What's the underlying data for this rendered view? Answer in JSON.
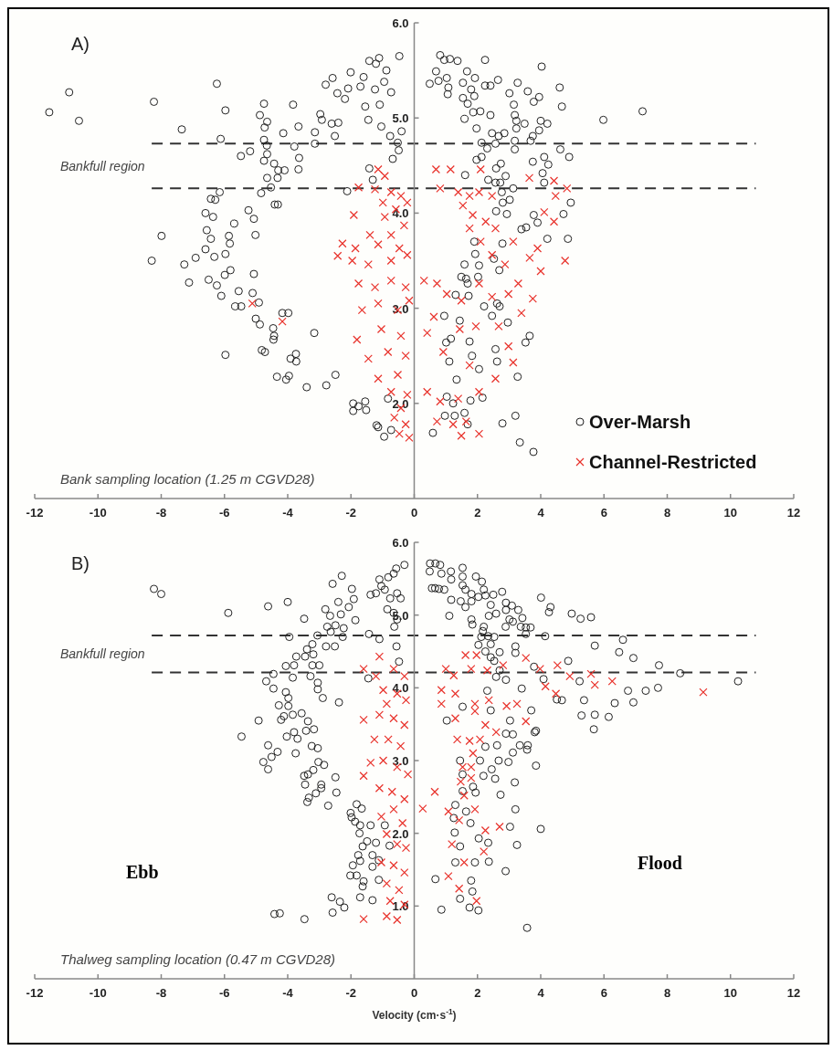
{
  "chart_data": [
    {
      "type": "scatter",
      "title": "A)",
      "xlim": [
        -12,
        12
      ],
      "ylim": [
        1,
        6
      ],
      "xticks": [
        -12,
        -10,
        -8,
        -6,
        -4,
        -2,
        0,
        2,
        4,
        6,
        8,
        10,
        12
      ],
      "yticks": [
        {
          "value": 2,
          "label": "2.0"
        },
        {
          "value": 3,
          "label": "3.0"
        },
        {
          "value": 4,
          "label": "4.0"
        },
        {
          "value": 5,
          "label": "5.0"
        },
        {
          "value": 6,
          "label": "6.0"
        }
      ],
      "grid": false,
      "legend": "bottom right",
      "ref_lines": [
        {
          "axis": "y",
          "value": 4.73,
          "line_style": "dashed",
          "color": "#333333"
        },
        {
          "axis": "y",
          "value": 4.26,
          "line_style": "dashed",
          "color": "#333333"
        }
      ],
      "annotations": [
        "Bankfull region",
        "Bank sampling location (1.25 m CGVD28)"
      ],
      "series": [
        {
          "name": "Over-Marsh",
          "color": "#222222",
          "marker": "circle",
          "x": [
            -11.54,
            -10.91,
            -10.6,
            -8.23,
            -8.3,
            -7.99,
            -7.35,
            -6.24,
            -5.97,
            -6.12,
            -7.27,
            -6.91,
            -7.12,
            -6.6,
            -6.43,
            -6.29,
            -6.15,
            -6.36,
            -6.56,
            -6.43,
            -6.6,
            -6.32,
            -6.5,
            -6.24,
            -6.1,
            -5.97,
            -5.69,
            -5.86,
            -5.83,
            -5.97,
            -5.99,
            -5.81,
            -5.55,
            -5.66,
            -5.47,
            -5.48,
            -5.19,
            -5.24,
            -5.07,
            -5.02,
            -5.07,
            -5.11,
            -4.91,
            -5.01,
            -4.88,
            -4.75,
            -4.88,
            -4.65,
            -4.73,
            -4.75,
            -4.66,
            -4.65,
            -4.75,
            -4.43,
            -4.65,
            -4.3,
            -4.1,
            -4.32,
            -4.53,
            -4.84,
            -4.41,
            -4.31,
            -3.83,
            -3.66,
            -4.14,
            -3.79,
            -3.64,
            -3.66,
            -4.46,
            -4.43,
            -4.45,
            -4.17,
            -3.98,
            -4.82,
            -4.72,
            -3.91,
            -3.74,
            -3.73,
            -4.34,
            -4.05,
            -3.96,
            -3.4,
            -3.16,
            -2.78,
            -2.49,
            -3.14,
            -3.14,
            -2.97,
            -2.92,
            -2.61,
            -2.4,
            -2.51,
            -2.8,
            -2.58,
            -2.43,
            -2.19,
            -2.09,
            -2.01,
            -2.12,
            -1.7,
            -1.6,
            -1.55,
            -1.45,
            -1.42,
            -1.21,
            -1.11,
            -1.24,
            -0.95,
            -0.73,
            -0.88,
            -0.47,
            -1.09,
            -1.04,
            -0.76,
            -0.52,
            -0.4,
            -0.49,
            -0.68,
            -1.42,
            -1.31,
            -1.93,
            -1.76,
            -1.55,
            -1.93,
            -1.52,
            -1.19,
            -1.14,
            -0.95,
            -0.83,
            -0.73,
            0.82,
            0.95,
            1.13,
            1.37,
            2.24,
            4.03,
            0.69,
            1.03,
            0.49,
            0.77,
            1.08,
            1.06,
            1.67,
            1.92,
            1.54,
            1.8,
            1.9,
            1.54,
            1.69,
            2.24,
            2.41,
            2.65,
            3.01,
            3.27,
            3.59,
            3.78,
            3.95,
            4.6,
            4.67,
            5.98,
            7.22,
            1.59,
            1.87,
            2.09,
            2.41,
            1.97,
            3.15,
            3.18,
            3.23,
            3.49,
            4.0,
            4.21,
            3.95,
            3.75,
            2.46,
            2.67,
            2.85,
            3.23,
            2.13,
            2.31,
            2.57,
            3.18,
            3.18,
            3.68,
            4.62,
            4.9,
            1.97,
            2.13,
            3.75,
            4.11,
            4.24,
            1.61,
            2.59,
            2.74,
            2.34,
            2.57,
            2.72,
            2.89,
            4.06,
            4.11,
            3.13,
            2.77,
            3.02,
            2.8,
            2.59,
            2.93,
            4.95,
            3.78,
            3.9,
            4.72,
            3.39,
            3.54,
            4.21,
            4.86,
            2.79,
            1.9,
            1.93,
            2.52,
            1.59,
            2.05,
            2.69,
            1.49,
            1.64,
            1.69,
            1.72,
            1.31,
            2.02,
            2.21,
            2.62,
            2.7,
            0.95,
            2.46,
            1.44,
            2.96,
            3.52,
            3.65,
            1.01,
            1.16,
            1.75,
            1.11,
            1.83,
            2.05,
            2.57,
            2.62,
            3.27,
            1.34,
            1.03,
            1.23,
            2.16,
            1.78,
            0.97,
            1.28,
            1.59,
            0.59,
            1.69,
            2.79,
            3.2,
            3.34,
            3.77
          ],
          "values": [
            5.06,
            5.27,
            4.97,
            5.17,
            3.5,
            3.76,
            4.88,
            5.36,
            5.08,
            4.78,
            3.46,
            3.53,
            3.27,
            4.0,
            4.15,
            4.14,
            4.22,
            3.96,
            3.82,
            3.73,
            3.62,
            3.54,
            3.3,
            3.24,
            3.13,
            2.51,
            3.89,
            3.76,
            3.68,
            3.57,
            3.35,
            3.4,
            3.18,
            3.02,
            3.02,
            4.6,
            4.65,
            4.03,
            3.94,
            3.77,
            3.36,
            3.16,
            3.06,
            2.89,
            2.83,
            5.15,
            5.03,
            4.96,
            4.9,
            4.77,
            4.71,
            4.62,
            4.55,
            4.52,
            4.37,
            4.45,
            4.45,
            4.37,
            4.27,
            4.21,
            4.09,
            4.09,
            5.14,
            4.91,
            4.84,
            4.7,
            4.58,
            4.46,
            2.79,
            2.71,
            2.67,
            2.95,
            2.95,
            2.56,
            2.54,
            2.47,
            2.52,
            2.44,
            2.28,
            2.25,
            2.29,
            2.17,
            2.74,
            2.19,
            2.3,
            4.85,
            4.73,
            5.04,
            4.98,
            4.94,
            4.95,
            4.81,
            5.35,
            5.42,
            5.26,
            5.2,
            5.31,
            5.48,
            4.23,
            5.33,
            5.43,
            5.12,
            4.98,
            5.6,
            5.57,
            5.63,
            5.3,
            5.38,
            5.27,
            5.5,
            5.65,
            5.14,
            4.91,
            4.81,
            4.74,
            4.86,
            4.66,
            4.57,
            4.47,
            4.35,
            2.0,
            1.97,
            2.02,
            1.92,
            1.93,
            1.77,
            1.75,
            1.65,
            2.05,
            1.72,
            5.66,
            5.61,
            5.62,
            5.6,
            5.61,
            5.54,
            5.49,
            5.42,
            5.36,
            5.39,
            5.32,
            5.25,
            5.49,
            5.42,
            5.37,
            5.3,
            5.23,
            5.21,
            5.15,
            5.34,
            5.34,
            5.4,
            5.26,
            5.37,
            5.28,
            5.17,
            5.22,
            5.32,
            5.12,
            4.98,
            5.07,
            4.99,
            5.06,
            5.07,
            5.03,
            4.89,
            5.14,
            5.03,
            4.97,
            4.94,
            4.97,
            4.94,
            4.87,
            4.81,
            4.84,
            4.81,
            4.84,
            4.89,
            4.74,
            4.68,
            4.73,
            4.76,
            4.67,
            4.76,
            4.67,
            4.59,
            4.56,
            4.59,
            4.54,
            4.59,
            4.51,
            4.4,
            4.47,
            4.52,
            4.35,
            4.32,
            4.32,
            4.39,
            4.42,
            4.32,
            4.26,
            4.22,
            4.14,
            4.11,
            4.02,
            3.99,
            4.11,
            3.98,
            3.9,
            3.99,
            3.83,
            3.85,
            3.73,
            3.73,
            3.68,
            3.7,
            3.57,
            3.52,
            3.46,
            3.45,
            3.4,
            3.33,
            3.31,
            3.26,
            3.13,
            3.14,
            3.33,
            3.02,
            3.05,
            3.02,
            2.92,
            2.92,
            2.87,
            2.85,
            2.64,
            2.71,
            2.64,
            2.68,
            2.65,
            2.44,
            2.5,
            2.36,
            2.57,
            2.44,
            2.28,
            2.25,
            2.07,
            2.0,
            2.06,
            2.03,
            1.87,
            1.87,
            1.9,
            1.69,
            1.78,
            1.79,
            1.87,
            1.59,
            1.49
          ]
        },
        {
          "name": "Channel-Restricted",
          "color": "#e8312a",
          "marker": "cross",
          "x": [
            -1.14,
            -0.93,
            -1.76,
            -1.24,
            -0.73,
            -0.42,
            -0.99,
            -0.58,
            -0.22,
            -1.91,
            -0.93,
            -0.32,
            -1.4,
            -0.73,
            -2.27,
            -1.86,
            -1.14,
            -0.47,
            -2.42,
            -1.96,
            -1.45,
            -0.73,
            -0.22,
            -1.76,
            -1.24,
            -0.73,
            -0.27,
            -1.65,
            -1.14,
            -0.52,
            -0.16,
            -1.81,
            -1.04,
            -0.42,
            -1.45,
            -0.83,
            -0.27,
            -1.14,
            -0.52,
            -0.73,
            -0.22,
            -0.42,
            -0.63,
            -0.27,
            -0.47,
            -0.16,
            -5.12,
            -4.17,
            0.69,
            1.15,
            2.1,
            0.82,
            1.39,
            1.75,
            2.05,
            2.46,
            1.54,
            1.85,
            2.26,
            1.75,
            2.57,
            2.1,
            2.46,
            3.64,
            4.42,
            4.83,
            4.47,
            4.11,
            4.42,
            3.13,
            3.9,
            3.65,
            4.0,
            4.77,
            2.87,
            3.29,
            2.98,
            3.75,
            3.39,
            0.31,
            0.72,
            0.62,
            1.03,
            1.49,
            2.05,
            2.46,
            0.41,
            1.44,
            1.95,
            2.67,
            2.98,
            0.92,
            1.75,
            2.57,
            3.13,
            0.41,
            0.82,
            1.39,
            2.05,
            0.72,
            1.23,
            1.64,
            2.05,
            1.49
          ],
          "values": [
            4.46,
            4.39,
            4.27,
            4.25,
            4.22,
            4.18,
            4.11,
            4.04,
            4.11,
            3.98,
            3.96,
            3.87,
            3.77,
            3.77,
            3.68,
            3.63,
            3.67,
            3.63,
            3.55,
            3.5,
            3.46,
            3.5,
            3.56,
            3.26,
            3.22,
            3.29,
            3.22,
            2.98,
            3.05,
            2.98,
            3.08,
            2.67,
            2.78,
            2.71,
            2.47,
            2.54,
            2.5,
            2.26,
            2.3,
            2.12,
            2.09,
            1.95,
            1.85,
            1.78,
            1.68,
            1.64,
            3.05,
            2.86,
            4.46,
            4.46,
            4.46,
            4.26,
            4.22,
            4.18,
            4.22,
            4.18,
            4.08,
            3.98,
            3.91,
            3.84,
            3.84,
            3.7,
            3.56,
            4.37,
            4.34,
            4.26,
            4.18,
            4.01,
            3.91,
            3.7,
            3.63,
            3.53,
            3.39,
            3.5,
            3.46,
            3.26,
            3.15,
            3.1,
            2.95,
            3.29,
            3.26,
            2.91,
            3.15,
            3.08,
            3.26,
            3.12,
            2.74,
            2.78,
            2.81,
            2.81,
            2.6,
            2.54,
            2.4,
            2.26,
            2.43,
            2.12,
            2.02,
            2.05,
            2.12,
            1.81,
            1.78,
            1.81,
            1.68,
            1.66
          ]
        }
      ]
    },
    {
      "type": "scatter",
      "title": "B)",
      "xlabel": "Velocity (cm·s$^{-1}$)",
      "xlim": [
        -12,
        12
      ],
      "ylim": [
        0,
        6
      ],
      "xticks": [
        -12,
        -10,
        -8,
        -6,
        -4,
        -2,
        0,
        2,
        4,
        6,
        8,
        10,
        12
      ],
      "yticks": [
        {
          "value": 1,
          "label": "1.0"
        },
        {
          "value": 2,
          "label": "2.0"
        },
        {
          "value": 3,
          "label": "3.0"
        },
        {
          "value": 4,
          "label": "4.0"
        },
        {
          "value": 5,
          "label": "5.0"
        },
        {
          "value": 6,
          "label": "6.0"
        }
      ],
      "grid": false,
      "legend": false,
      "ref_lines": [
        {
          "axis": "y",
          "value": 4.72,
          "line_style": "dashed",
          "color": "#333333"
        },
        {
          "axis": "y",
          "value": 4.21,
          "line_style": "dashed",
          "color": "#333333"
        }
      ],
      "annotations": [
        "Bankfull region",
        "Ebb",
        "Flood",
        "Thalweg sampling location (0.47 m CGVD28)"
      ],
      "series": [
        {
          "color": "#222222",
          "marker": "circle",
          "x": [
            -8.23,
            -8.0,
            -5.88,
            -4.62,
            -4.0,
            -3.48,
            -2.81,
            -2.58,
            -2.29,
            -1.97,
            -1.91,
            -2.07,
            -2.4,
            -2.32,
            -2.66,
            -1.86,
            -2.75,
            -2.49,
            -2.23,
            -2.64,
            -3.06,
            -2.26,
            -1.43,
            -3.95,
            -1.1,
            -2.79,
            -2.51,
            -3.22,
            -3.39,
            -3.19,
            -3.45,
            -3.73,
            -4.06,
            -3.8,
            -3.22,
            -3.0,
            -4.45,
            -3.84,
            -3.28,
            -4.68,
            -4.45,
            -3.05,
            -3.05,
            -2.89,
            -2.38,
            -1.45,
            -4.06,
            -3.98,
            -4.28,
            -3.98,
            -4.12,
            -3.84,
            -4.21,
            -4.92,
            -5.46,
            -4.03,
            -3.8,
            -3.69,
            -3.56,
            -3.36,
            -3.17,
            -3.42,
            -3.75,
            -4.62,
            -4.32,
            -4.51,
            -4.77,
            -4.62,
            -3.24,
            -3.05,
            -3.03,
            -2.85,
            -3.19,
            -3.48,
            -3.36,
            -3.45,
            -2.94,
            -2.94,
            -3.11,
            -3.33,
            -3.38,
            -2.49,
            -2.46,
            -2.72,
            -1.82,
            -1.66,
            -2.01,
            -1.98,
            -1.87,
            -1.38,
            -1.71,
            -1.73,
            -0.93,
            -1.49,
            -1.21,
            -1.63,
            -0.78,
            -1.77,
            -1.71,
            -1.32,
            -1.12,
            -1.32,
            -1.94,
            -2.02,
            -1.82,
            -1.6,
            -1.63,
            -1.12,
            -1.71,
            -1.32,
            -2.61,
            -2.35,
            -2.21,
            -2.58,
            -4.42,
            -4.25,
            -3.47,
            -1.1,
            -1.04,
            -0.82,
            -0.65,
            -0.31,
            -0.57,
            -1.38,
            -1.21,
            -0.93,
            -0.76,
            -0.54,
            -0.43,
            -0.85,
            -0.65,
            -0.54,
            -0.63,
            -0.56,
            -0.48,
            0.5,
            0.67,
            0.82,
            0.49,
            0.86,
            1.16,
            1.53,
            1.53,
            1.17,
            1.95,
            2.14,
            0.56,
            0.66,
            0.78,
            0.95,
            1.53,
            1.62,
            2.2,
            1.81,
            2.03,
            2.25,
            2.5,
            2.78,
            1.17,
            1.47,
            1.62,
            1.81,
            2.42,
            2.9,
            3.09,
            2.9,
            3.29,
            2.59,
            2.36,
            1.11,
            1.81,
            1.84,
            3.01,
            3.12,
            3.42,
            2.89,
            3.37,
            3.53,
            3.68,
            3.53,
            4.01,
            4.31,
            4.26,
            4.98,
            5.26,
            5.59,
            2.2,
            2.17,
            2.12,
            2.34,
            2.53,
            2.42,
            2.03,
            2.25,
            2.7,
            2.42,
            2.53,
            4.14,
            5.71,
            6.6,
            6.48,
            6.93,
            7.74,
            8.41,
            10.24,
            3.2,
            3.2,
            4.87,
            3.79,
            2.7,
            2.59,
            2.9,
            4.09,
            5.23,
            2.31,
            3.4,
            4.51,
            4.67,
            5.37,
            6.34,
            6.76,
            6.93,
            7.32,
            7.71,
            5.29,
            5.71,
            6.15,
            5.68,
            1.53,
            1.03,
            2.42,
            3.7,
            3.03,
            2.9,
            3.12,
            3.81,
            3.85,
            2.25,
            2.62,
            3.34,
            3.59,
            3.57,
            3.12,
            1.45,
            2.08,
            2.67,
            2.98,
            3.85,
            1.53,
            2.19,
            2.45,
            2.56,
            3.18,
            1.86,
            1.53,
            1.94,
            2.73,
            1.3,
            1.64,
            3.2,
            1.25,
            1.78,
            1.28,
            3.03,
            4.0,
            1.45,
            2.04,
            2.34,
            3.25,
            1.3,
            1.92,
            2.36,
            2.89,
            0.67,
            1.8,
            1.84,
            1.45,
            0.86,
            1.75,
            2.03,
            3.57
          ],
          "values": [
            5.36,
            5.29,
            5.03,
            5.12,
            5.18,
            4.95,
            5.08,
            5.43,
            5.54,
            5.36,
            5.22,
            5.11,
            5.18,
            5.01,
            4.99,
            4.93,
            4.84,
            4.86,
            4.82,
            4.77,
            4.72,
            4.7,
            4.74,
            4.7,
            4.67,
            4.57,
            4.57,
            4.6,
            4.53,
            4.46,
            4.43,
            4.43,
            4.3,
            4.31,
            4.31,
            4.31,
            4.19,
            4.14,
            4.16,
            4.09,
            3.99,
            4.07,
            3.98,
            3.86,
            3.8,
            4.13,
            3.94,
            3.86,
            3.76,
            3.75,
            3.61,
            3.63,
            3.56,
            3.55,
            3.33,
            3.33,
            3.39,
            3.3,
            3.65,
            3.54,
            3.43,
            3.41,
            3.1,
            3.21,
            3.12,
            3.05,
            2.98,
            2.88,
            3.2,
            3.17,
            2.98,
            2.94,
            2.87,
            2.79,
            2.81,
            2.67,
            2.67,
            2.62,
            2.55,
            2.49,
            2.43,
            2.77,
            2.56,
            2.38,
            2.4,
            2.34,
            2.28,
            2.22,
            2.16,
            2.11,
            2.11,
            2.0,
            2.11,
            1.89,
            1.87,
            1.82,
            1.83,
            1.7,
            1.62,
            1.7,
            1.63,
            1.54,
            1.56,
            1.42,
            1.42,
            1.34,
            1.27,
            1.36,
            1.12,
            1.08,
            1.12,
            1.06,
            0.98,
            0.91,
            0.89,
            0.9,
            0.82,
            5.49,
            5.4,
            5.52,
            5.57,
            5.69,
            5.64,
            5.28,
            5.3,
            5.35,
            5.23,
            5.3,
            5.23,
            5.08,
            5.03,
            4.94,
            4.84,
            4.57,
            4.36,
            5.71,
            5.71,
            5.69,
            5.6,
            5.57,
            5.6,
            5.65,
            5.53,
            5.49,
            5.53,
            5.46,
            5.37,
            5.37,
            5.36,
            5.35,
            5.41,
            5.35,
            5.35,
            5.29,
            5.25,
            5.27,
            5.28,
            5.32,
            5.21,
            5.19,
            5.11,
            5.19,
            5.14,
            5.17,
            5.13,
            5.07,
            5.07,
            5.02,
            4.99,
            4.99,
            4.94,
            4.87,
            4.94,
            4.91,
            4.96,
            4.84,
            4.84,
            4.83,
            4.83,
            4.74,
            5.24,
            5.11,
            5.04,
            5.02,
            4.95,
            4.97,
            4.84,
            4.78,
            4.7,
            4.71,
            4.7,
            4.6,
            4.59,
            4.5,
            4.49,
            4.42,
            4.37,
            4.71,
            4.58,
            4.66,
            4.49,
            4.41,
            4.31,
            4.2,
            4.09,
            4.57,
            4.48,
            4.37,
            4.29,
            4.24,
            4.15,
            4.11,
            4.12,
            4.09,
            3.96,
            3.99,
            3.84,
            3.83,
            3.83,
            3.79,
            3.96,
            3.8,
            3.96,
            4.0,
            3.62,
            3.63,
            3.6,
            3.43,
            3.74,
            3.55,
            3.69,
            3.69,
            3.55,
            3.37,
            3.36,
            3.39,
            3.41,
            3.19,
            3.21,
            3.21,
            3.21,
            3.15,
            3.11,
            3.0,
            3.0,
            3.0,
            2.98,
            2.93,
            2.81,
            2.79,
            2.88,
            2.75,
            2.7,
            2.64,
            2.58,
            2.56,
            2.53,
            2.39,
            2.3,
            2.33,
            2.21,
            2.14,
            2.01,
            2.09,
            2.06,
            1.82,
            1.93,
            1.87,
            1.84,
            1.6,
            1.6,
            1.61,
            1.48,
            1.37,
            1.35,
            1.2,
            1.1,
            0.95,
            0.98,
            0.94,
            0.7
          ]
        },
        {
          "color": "#e8312a",
          "marker": "cross",
          "x": [
            -1.1,
            -1.6,
            -1.21,
            -0.65,
            -0.31,
            -0.98,
            -0.54,
            -0.26,
            -0.87,
            -1.6,
            -1.1,
            -0.65,
            -0.31,
            -1.26,
            -0.82,
            -0.43,
            -1.38,
            -1.6,
            -0.98,
            -0.54,
            -0.2,
            -1.1,
            -0.7,
            -0.31,
            -1.04,
            -0.65,
            -0.37,
            -0.87,
            -0.54,
            -0.26,
            -1.04,
            -0.65,
            -0.31,
            -0.87,
            -0.48,
            -0.76,
            -0.31,
            -1.6,
            -0.87,
            -0.54,
            0.27,
            0.65,
            1.62,
            1.97,
            1.0,
            1.25,
            1.8,
            2.31,
            2.81,
            3.53,
            3.98,
            4.53,
            4.92,
            5.59,
            6.26,
            9.14,
            5.71,
            4.48,
            4.15,
            0.86,
            1.3,
            0.86,
            1.92,
            2.36,
            2.92,
            3.25,
            3.53,
            1.3,
            1.92,
            2.25,
            1.36,
            1.75,
            2.08,
            2.59,
            1.86,
            1.53,
            1.8,
            1.47,
            1.8,
            1.58,
            1.08,
            1.92,
            1.42,
            2.25,
            2.7,
            2.2,
            1.19,
            1.58,
            1.08,
            1.42,
            1.97
          ],
          "values": [
            4.43,
            4.26,
            4.16,
            4.26,
            4.16,
            3.97,
            3.92,
            3.83,
            3.78,
            3.56,
            3.63,
            3.58,
            3.49,
            3.29,
            3.29,
            3.2,
            2.97,
            2.79,
            3.0,
            2.91,
            2.81,
            2.62,
            2.57,
            2.47,
            2.23,
            2.33,
            2.14,
            1.99,
            1.85,
            1.8,
            1.6,
            1.56,
            1.46,
            1.31,
            1.22,
            1.07,
            1.02,
            0.82,
            0.86,
            0.81,
            2.34,
            2.57,
            4.45,
            4.45,
            4.26,
            4.17,
            4.26,
            4.24,
            4.31,
            4.41,
            4.26,
            4.31,
            4.16,
            4.19,
            4.09,
            3.94,
            4.04,
            3.92,
            4.02,
            3.97,
            3.92,
            3.78,
            3.78,
            3.83,
            3.75,
            3.78,
            3.54,
            3.58,
            3.68,
            3.49,
            3.29,
            3.27,
            3.29,
            3.39,
            3.1,
            2.91,
            2.91,
            2.71,
            2.76,
            2.52,
            2.3,
            2.33,
            2.18,
            2.04,
            2.09,
            1.75,
            1.85,
            1.6,
            1.41,
            1.24,
            1.07
          ]
        }
      ]
    }
  ]
}
